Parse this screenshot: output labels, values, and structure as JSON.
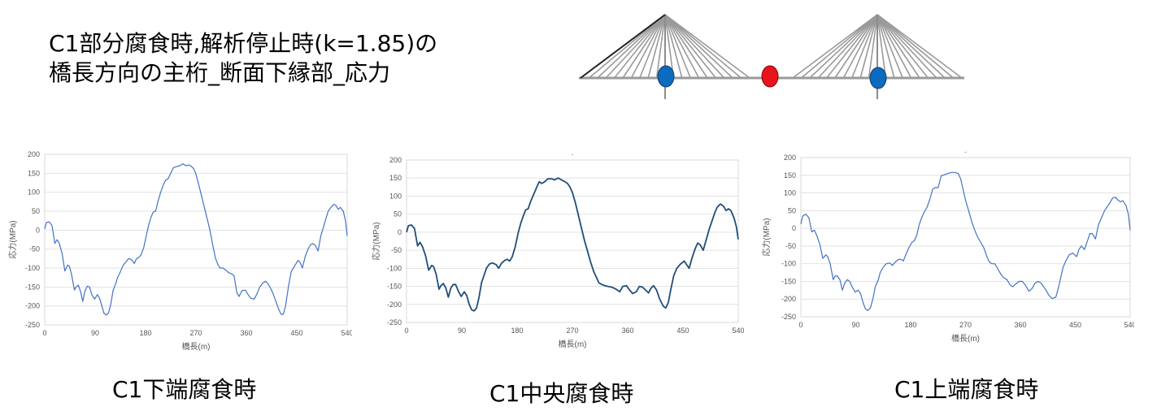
{
  "header": {
    "title_line1": "C1部分腐食時,解析停止時(k=1.85)の",
    "title_line2": "橋長方向の主桁_断面下縁部_応力"
  },
  "diagram": {
    "colors": {
      "cable": "#9a9a9a",
      "corroded_marker": "#e8141c",
      "normal_marker": "#0a6bbf"
    }
  },
  "captions": [
    "C1下端腐食時",
    "C1中央腐食時",
    "C1上端腐食時"
  ],
  "chart_data": [
    {
      "type": "line",
      "title": "",
      "xlabel": "橋長(m)",
      "ylabel": "応力(MPa)",
      "xlim": [
        0,
        540
      ],
      "ylim": [
        -250,
        200
      ],
      "xticks": [
        0,
        90,
        180,
        270,
        360,
        450,
        540
      ],
      "yticks": [
        200,
        150,
        100,
        50,
        0,
        -50,
        -100,
        -150,
        -200,
        -250
      ],
      "grid": true,
      "series": [
        {
          "color": "#4472c4",
          "x": [
            0,
            3,
            8,
            13,
            18,
            22,
            26,
            31,
            36,
            41,
            44,
            48,
            53,
            56,
            60,
            64,
            68,
            72,
            76,
            80,
            84,
            89,
            94,
            98,
            102,
            106,
            110,
            114,
            118,
            122,
            127,
            130,
            135,
            140,
            146,
            150,
            155,
            160,
            164,
            168,
            172,
            177,
            182,
            186,
            190,
            194,
            198,
            202,
            207,
            212,
            216,
            220,
            225,
            230,
            236,
            241,
            247,
            252,
            258,
            262,
            266,
            270,
            275,
            280,
            285,
            290,
            295,
            300,
            305,
            309,
            313,
            318,
            323,
            328,
            333,
            338,
            343,
            347,
            352,
            358,
            363,
            368,
            374,
            379,
            384,
            389,
            394,
            398,
            402,
            407,
            412,
            418,
            422,
            426,
            430,
            435,
            440,
            446,
            452,
            456,
            460,
            465,
            470,
            474,
            478,
            483,
            488,
            493,
            498,
            502,
            506,
            511,
            516,
            520,
            524,
            528,
            533,
            537,
            540
          ],
          "y": [
            3,
            20,
            22,
            12,
            -35,
            -25,
            -35,
            -62,
            -108,
            -92,
            -95,
            -118,
            -158,
            -150,
            -145,
            -162,
            -188,
            -160,
            -148,
            -150,
            -170,
            -182,
            -170,
            -180,
            -200,
            -220,
            -224,
            -218,
            -195,
            -160,
            -140,
            -125,
            -110,
            -93,
            -82,
            -75,
            -78,
            -88,
            -75,
            -72,
            -65,
            -45,
            -10,
            15,
            35,
            48,
            50,
            75,
            100,
            120,
            132,
            135,
            150,
            165,
            168,
            170,
            175,
            170,
            172,
            168,
            162,
            148,
            120,
            90,
            60,
            30,
            0,
            -40,
            -75,
            -90,
            -100,
            -100,
            -105,
            -112,
            -115,
            -120,
            -165,
            -175,
            -160,
            -158,
            -170,
            -180,
            -182,
            -168,
            -150,
            -140,
            -135,
            -140,
            -150,
            -165,
            -185,
            -210,
            -222,
            -222,
            -200,
            -150,
            -110,
            -95,
            -80,
            -85,
            -100,
            -70,
            -50,
            -40,
            -35,
            -40,
            -55,
            -15,
            10,
            30,
            50,
            60,
            68,
            65,
            55,
            60,
            50,
            25,
            -15
          ]
        }
      ]
    },
    {
      "type": "line",
      "title": "-",
      "xlabel": "橋長(m)",
      "ylabel": "応力(MPa)",
      "xlim": [
        0,
        540
      ],
      "ylim": [
        -250,
        200
      ],
      "xticks": [
        0,
        90,
        180,
        270,
        360,
        450,
        540
      ],
      "yticks": [
        200,
        150,
        100,
        50,
        0,
        -50,
        -100,
        -150,
        -200,
        -250
      ],
      "grid": true,
      "series": [
        {
          "color": "#1f4e79",
          "x": [
            0,
            3,
            8,
            13,
            18,
            22,
            26,
            31,
            36,
            41,
            44,
            48,
            53,
            56,
            60,
            64,
            68,
            72,
            76,
            80,
            84,
            89,
            94,
            98,
            102,
            106,
            110,
            114,
            118,
            122,
            127,
            130,
            135,
            140,
            146,
            150,
            155,
            160,
            164,
            168,
            172,
            177,
            182,
            186,
            190,
            194,
            198,
            202,
            207,
            212,
            216,
            220,
            225,
            230,
            236,
            241,
            247,
            252,
            258,
            262,
            266,
            270,
            275,
            280,
            285,
            290,
            295,
            300,
            305,
            309,
            313,
            318,
            323,
            328,
            333,
            338,
            343,
            347,
            352,
            358,
            363,
            368,
            374,
            379,
            384,
            389,
            394,
            398,
            402,
            407,
            412,
            418,
            422,
            426,
            430,
            435,
            440,
            446,
            452,
            456,
            460,
            465,
            470,
            474,
            478,
            483,
            488,
            493,
            498,
            502,
            506,
            511,
            516,
            520,
            524,
            528,
            533,
            537,
            540
          ],
          "y": [
            0,
            18,
            20,
            10,
            -38,
            -28,
            -40,
            -65,
            -105,
            -92,
            -95,
            -115,
            -158,
            -148,
            -142,
            -155,
            -180,
            -155,
            -145,
            -145,
            -162,
            -178,
            -165,
            -175,
            -200,
            -215,
            -218,
            -210,
            -180,
            -140,
            -115,
            -100,
            -88,
            -85,
            -90,
            -100,
            -85,
            -78,
            -75,
            -80,
            -68,
            -40,
            0,
            25,
            45,
            62,
            65,
            85,
            105,
            125,
            140,
            135,
            140,
            148,
            148,
            145,
            150,
            145,
            140,
            135,
            125,
            110,
            80,
            45,
            10,
            -25,
            -55,
            -85,
            -110,
            -125,
            -140,
            -145,
            -148,
            -150,
            -152,
            -155,
            -160,
            -165,
            -150,
            -148,
            -160,
            -170,
            -165,
            -150,
            -152,
            -160,
            -168,
            -155,
            -148,
            -160,
            -185,
            -205,
            -210,
            -195,
            -160,
            -120,
            -100,
            -88,
            -80,
            -90,
            -100,
            -70,
            -45,
            -30,
            -35,
            -50,
            -20,
            10,
            35,
            55,
            70,
            78,
            72,
            60,
            65,
            60,
            40,
            15,
            -20
          ]
        }
      ]
    },
    {
      "type": "line",
      "title": "-",
      "xlabel": "橋長(m)",
      "ylabel": "応力(MPa)",
      "xlim": [
        0,
        540
      ],
      "ylim": [
        -250,
        200
      ],
      "xticks": [
        0,
        90,
        180,
        270,
        360,
        450,
        540
      ],
      "yticks": [
        200,
        150,
        100,
        50,
        0,
        -50,
        -100,
        -150,
        -200,
        -250
      ],
      "grid": true,
      "series": [
        {
          "color": "#4472c4",
          "x": [
            0,
            3,
            8,
            13,
            18,
            22,
            26,
            31,
            36,
            41,
            44,
            48,
            53,
            56,
            60,
            64,
            68,
            72,
            76,
            80,
            84,
            89,
            94,
            98,
            102,
            106,
            110,
            114,
            118,
            122,
            127,
            130,
            135,
            140,
            146,
            150,
            155,
            160,
            164,
            168,
            172,
            177,
            182,
            186,
            190,
            194,
            198,
            202,
            207,
            212,
            216,
            220,
            225,
            230,
            236,
            241,
            247,
            252,
            258,
            262,
            266,
            270,
            275,
            280,
            285,
            290,
            295,
            300,
            305,
            309,
            313,
            318,
            323,
            328,
            333,
            338,
            343,
            347,
            352,
            358,
            363,
            368,
            374,
            379,
            384,
            389,
            394,
            398,
            402,
            407,
            412,
            418,
            422,
            426,
            430,
            435,
            440,
            446,
            452,
            456,
            460,
            465,
            470,
            474,
            478,
            483,
            488,
            493,
            498,
            502,
            506,
            511,
            516,
            520,
            524,
            528,
            533,
            537,
            540
          ],
          "y": [
            12,
            35,
            40,
            30,
            -10,
            -5,
            -20,
            -45,
            -85,
            -75,
            -80,
            -100,
            -145,
            -135,
            -135,
            -145,
            -175,
            -155,
            -145,
            -150,
            -165,
            -180,
            -175,
            -185,
            -210,
            -228,
            -232,
            -225,
            -200,
            -165,
            -145,
            -125,
            -110,
            -100,
            -98,
            -105,
            -95,
            -88,
            -88,
            -92,
            -75,
            -55,
            -40,
            -35,
            -20,
            10,
            30,
            45,
            60,
            85,
            110,
            115,
            115,
            148,
            152,
            155,
            158,
            158,
            155,
            140,
            110,
            80,
            50,
            20,
            -5,
            -25,
            -40,
            -55,
            -80,
            -95,
            -100,
            -100,
            -115,
            -130,
            -140,
            -145,
            -160,
            -165,
            -158,
            -150,
            -150,
            -160,
            -178,
            -170,
            -155,
            -150,
            -155,
            -165,
            -175,
            -190,
            -198,
            -195,
            -170,
            -140,
            -110,
            -90,
            -75,
            -70,
            -80,
            -60,
            -50,
            -60,
            -35,
            -15,
            -15,
            -30,
            10,
            30,
            50,
            60,
            70,
            85,
            88,
            80,
            75,
            78,
            65,
            40,
            -5
          ]
        }
      ]
    }
  ]
}
